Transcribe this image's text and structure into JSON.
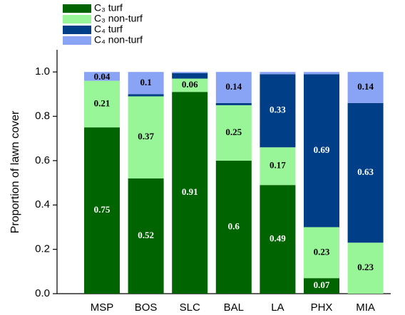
{
  "chart_data": {
    "type": "stacked-bar",
    "y_label": "Proportion of lawn cover",
    "categories": [
      "MSP",
      "BOS",
      "SLC",
      "BAL",
      "LA",
      "PHX",
      "MIA"
    ],
    "series": [
      {
        "name": "C₃ turf",
        "color": "#006400",
        "values": [
          0.75,
          0.52,
          0.91,
          0.6,
          0.49,
          0.07,
          0
        ]
      },
      {
        "name": "C₃ non-turf",
        "color": "#98f598",
        "values": [
          0.21,
          0.37,
          0.06,
          0.25,
          0.17,
          0.23,
          0.23
        ]
      },
      {
        "name": "C₄ turf",
        "color": "#003f87",
        "values": [
          0,
          0.01,
          0.025,
          0.01,
          0.33,
          0.69,
          0.63
        ]
      },
      {
        "name": "C₄ non-turf",
        "color": "#8aa4f5",
        "values": [
          0.04,
          0.1,
          0.005,
          0.14,
          0.01,
          0.01,
          0.14
        ]
      }
    ],
    "ylim": [
      0,
      1.1
    ],
    "yticks": [
      {
        "value": 0,
        "label": "0.0"
      },
      0.2,
      0.4,
      0.6,
      0.8,
      {
        "value": 1,
        "label": "1.0"
      }
    ],
    "legend": "top-left"
  }
}
